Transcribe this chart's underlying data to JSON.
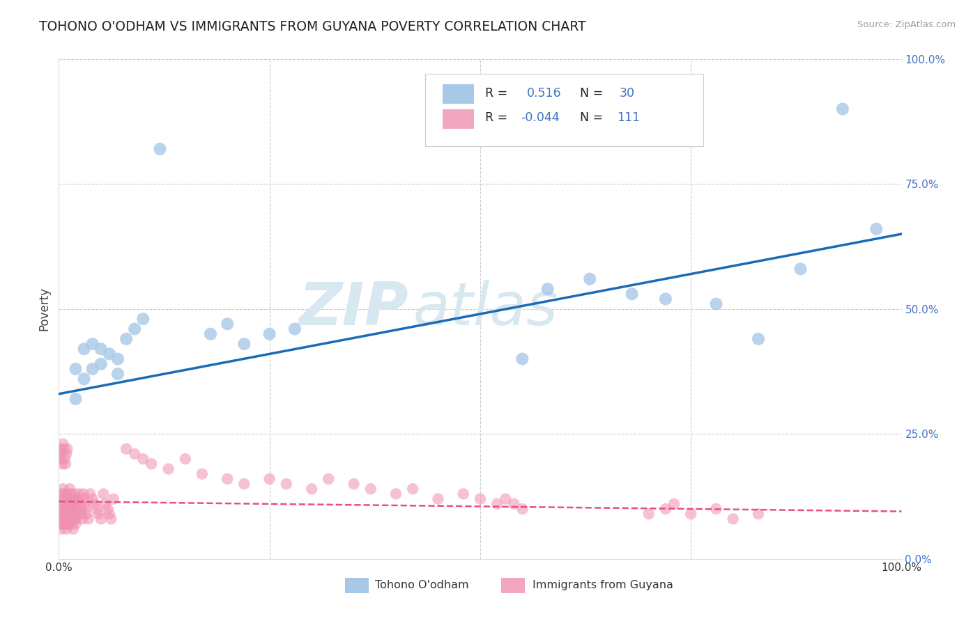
{
  "title": "TOHONO O'ODHAM VS IMMIGRANTS FROM GUYANA POVERTY CORRELATION CHART",
  "source": "Source: ZipAtlas.com",
  "ylabel": "Poverty",
  "xlim": [
    0.0,
    1.0
  ],
  "ylim": [
    0.0,
    1.0
  ],
  "xticks": [
    0.0,
    0.25,
    0.5,
    0.75,
    1.0
  ],
  "yticks": [
    0.0,
    0.25,
    0.5,
    0.75,
    1.0
  ],
  "xticklabels": [
    "0.0%",
    "",
    "",
    "",
    "100.0%"
  ],
  "yticklabels_right": [
    "0.0%",
    "25.0%",
    "50.0%",
    "75.0%",
    "100.0%"
  ],
  "blue_color": "#a8c8e8",
  "pink_color": "#f090b0",
  "blue_line_color": "#1a6bb5",
  "pink_line_color": "#e8507a",
  "series1_label": "Tohono O'odham",
  "series2_label": "Immigrants from Guyana",
  "blue_R": 0.516,
  "blue_N": 30,
  "pink_R": -0.044,
  "pink_N": 111,
  "blue_line_x0": 0.0,
  "blue_line_y0": 0.33,
  "blue_line_x1": 1.0,
  "blue_line_y1": 0.65,
  "pink_line_x0": 0.0,
  "pink_line_y0": 0.115,
  "pink_line_x1": 1.0,
  "pink_line_y1": 0.095,
  "background_color": "#ffffff",
  "grid_color": "#cccccc",
  "title_color": "#222222",
  "tick_color_right": "#4472c4",
  "tick_color_bottom": "#333333",
  "legend_text_color": "#4472c4",
  "watermark_color": "#d8e8f0",
  "blue_x": [
    0.02,
    0.02,
    0.03,
    0.03,
    0.04,
    0.04,
    0.05,
    0.05,
    0.06,
    0.07,
    0.07,
    0.08,
    0.09,
    0.1,
    0.12,
    0.18,
    0.2,
    0.22,
    0.25,
    0.28,
    0.55,
    0.58,
    0.63,
    0.68,
    0.72,
    0.78,
    0.83,
    0.88,
    0.93,
    0.97
  ],
  "blue_y": [
    0.38,
    0.32,
    0.42,
    0.36,
    0.43,
    0.38,
    0.42,
    0.39,
    0.41,
    0.37,
    0.4,
    0.44,
    0.46,
    0.48,
    0.82,
    0.45,
    0.47,
    0.43,
    0.45,
    0.46,
    0.4,
    0.54,
    0.56,
    0.53,
    0.52,
    0.51,
    0.44,
    0.58,
    0.9,
    0.66
  ],
  "pink_dense_x": [
    0.001,
    0.001,
    0.002,
    0.002,
    0.003,
    0.003,
    0.003,
    0.004,
    0.004,
    0.005,
    0.005,
    0.005,
    0.006,
    0.006,
    0.007,
    0.007,
    0.008,
    0.008,
    0.009,
    0.009,
    0.01,
    0.01,
    0.01,
    0.011,
    0.011,
    0.012,
    0.012,
    0.013,
    0.013,
    0.014,
    0.014,
    0.015,
    0.015,
    0.016,
    0.016,
    0.017,
    0.017,
    0.018,
    0.018,
    0.019,
    0.019,
    0.02,
    0.02,
    0.021,
    0.021,
    0.022,
    0.023,
    0.024,
    0.025,
    0.026,
    0.027,
    0.028,
    0.029,
    0.03,
    0.031,
    0.032,
    0.033,
    0.035,
    0.037,
    0.04,
    0.042,
    0.045,
    0.047,
    0.05,
    0.053,
    0.055,
    0.058,
    0.06,
    0.062,
    0.065,
    0.001,
    0.002,
    0.003,
    0.004,
    0.005,
    0.006,
    0.007,
    0.008,
    0.009,
    0.01
  ],
  "pink_dense_y": [
    0.11,
    0.08,
    0.1,
    0.07,
    0.09,
    0.06,
    0.13,
    0.08,
    0.12,
    0.07,
    0.1,
    0.14,
    0.09,
    0.13,
    0.08,
    0.12,
    0.07,
    0.11,
    0.06,
    0.1,
    0.09,
    0.13,
    0.07,
    0.12,
    0.08,
    0.11,
    0.07,
    0.1,
    0.14,
    0.09,
    0.13,
    0.08,
    0.12,
    0.07,
    0.11,
    0.06,
    0.1,
    0.09,
    0.13,
    0.08,
    0.12,
    0.07,
    0.11,
    0.1,
    0.08,
    0.09,
    0.12,
    0.13,
    0.11,
    0.1,
    0.09,
    0.08,
    0.13,
    0.12,
    0.11,
    0.1,
    0.09,
    0.08,
    0.13,
    0.12,
    0.11,
    0.1,
    0.09,
    0.08,
    0.13,
    0.11,
    0.1,
    0.09,
    0.08,
    0.12,
    0.2,
    0.22,
    0.21,
    0.19,
    0.23,
    0.22,
    0.2,
    0.19,
    0.21,
    0.22
  ],
  "pink_sparse_x": [
    0.08,
    0.09,
    0.1,
    0.11,
    0.13,
    0.15,
    0.17,
    0.2,
    0.22,
    0.25,
    0.27,
    0.3,
    0.32,
    0.35,
    0.37,
    0.4,
    0.42,
    0.45,
    0.48,
    0.5,
    0.52,
    0.53,
    0.54,
    0.55,
    0.7,
    0.72,
    0.73,
    0.75,
    0.78,
    0.8,
    0.83
  ],
  "pink_sparse_y": [
    0.22,
    0.21,
    0.2,
    0.19,
    0.18,
    0.2,
    0.17,
    0.16,
    0.15,
    0.16,
    0.15,
    0.14,
    0.16,
    0.15,
    0.14,
    0.13,
    0.14,
    0.12,
    0.13,
    0.12,
    0.11,
    0.12,
    0.11,
    0.1,
    0.09,
    0.1,
    0.11,
    0.09,
    0.1,
    0.08,
    0.09
  ]
}
